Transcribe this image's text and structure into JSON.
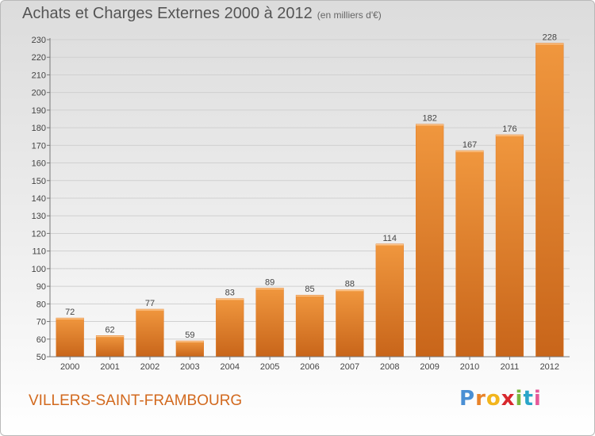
{
  "chart_data": {
    "type": "bar",
    "title": "Achats et Charges Externes 2000 à 2012",
    "subtitle": "(en milliers d'€)",
    "categories": [
      "2000",
      "2001",
      "2002",
      "2003",
      "2004",
      "2005",
      "2006",
      "2007",
      "2008",
      "2009",
      "2010",
      "2011",
      "2012"
    ],
    "values": [
      72,
      62,
      77,
      59,
      83,
      89,
      85,
      88,
      114,
      182,
      167,
      176,
      228
    ],
    "ylim": [
      50,
      230
    ],
    "yticks": [
      50,
      60,
      70,
      80,
      90,
      100,
      110,
      120,
      130,
      140,
      150,
      160,
      170,
      180,
      190,
      200,
      210,
      220,
      230
    ],
    "grid": true,
    "bar_color": "#f0973e",
    "bar_color_dark": "#c8651a"
  },
  "footer": {
    "commune": "VILLERS-SAINT-FRAMBOURG",
    "logo_text": "Proxiti",
    "logo_colors": [
      "#4a8fd4",
      "#e8832a",
      "#f2b51d",
      "#d8282d",
      "#7ab83d",
      "#2aa5c8",
      "#e65a9a"
    ]
  }
}
